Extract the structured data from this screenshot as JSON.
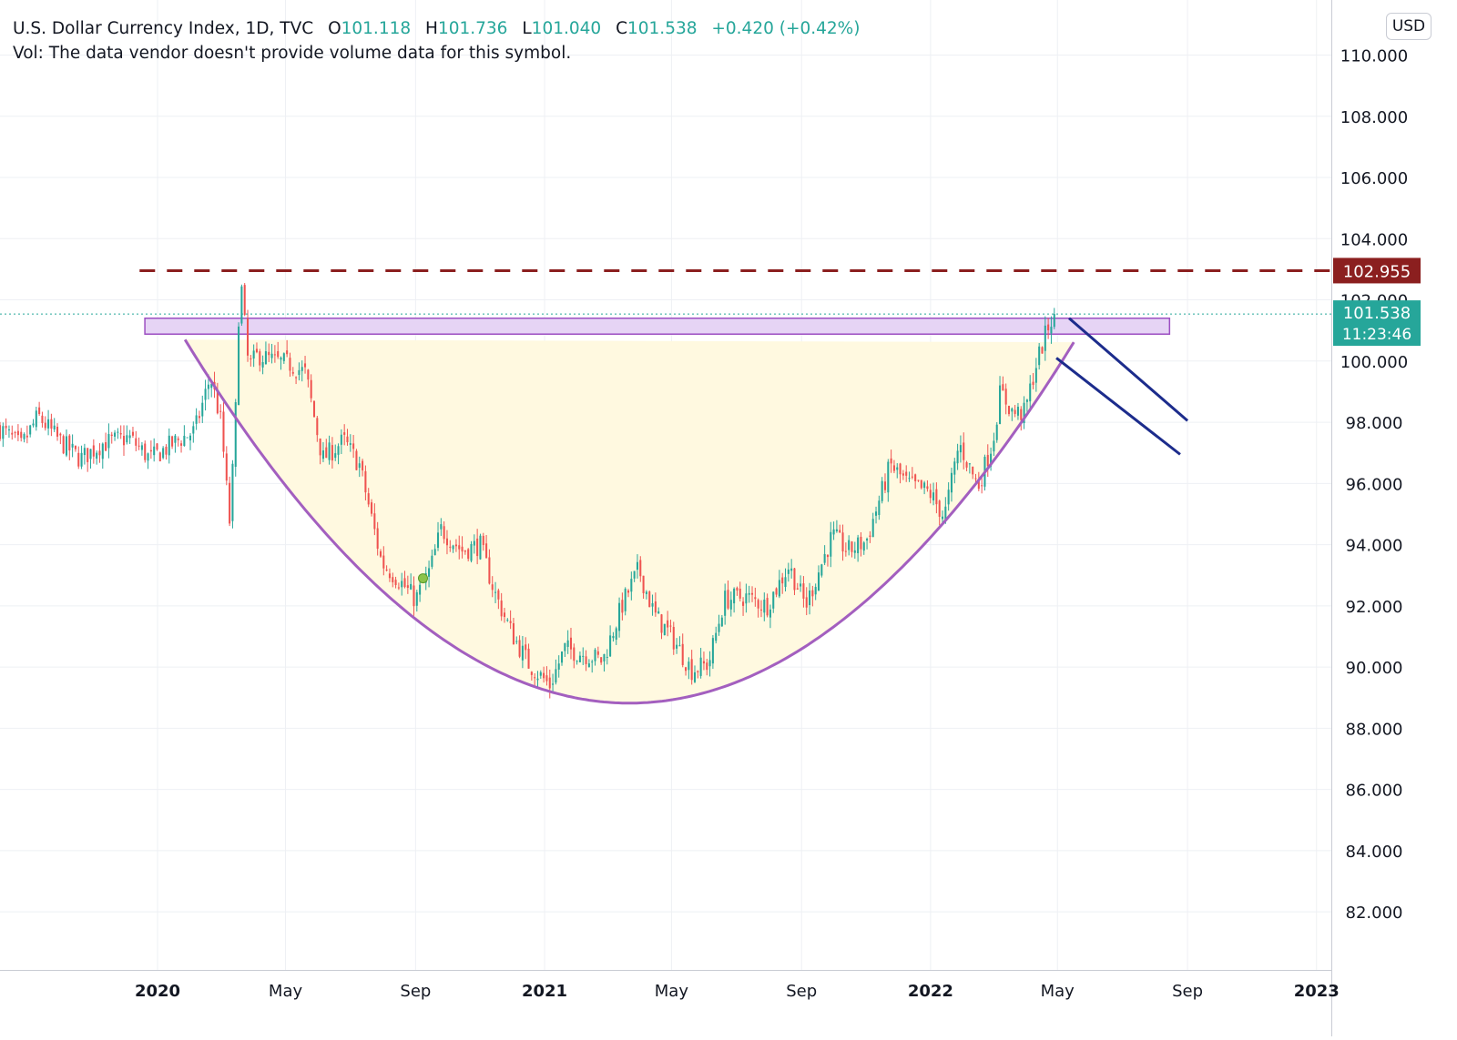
{
  "legend": {
    "symbol": "U.S. Dollar Currency Index, 1D, TVC",
    "open_label": "O",
    "open": "101.118",
    "high_label": "H",
    "high": "101.736",
    "low_label": "L",
    "low": "101.040",
    "close_label": "C",
    "close": "101.538",
    "change": "+0.420 (+0.42%)",
    "volume_note": "Vol: The data vendor doesn't provide volume data for this symbol."
  },
  "currency_button": "USD",
  "colors": {
    "up": "#26a69a",
    "down": "#ef5350",
    "cup_curve": "#a35fbf",
    "cup_fill": "#fff9e0",
    "resistance_zone_fill": "#e6d4f5",
    "resistance_zone_border": "#9c4fc2",
    "dashed_level": "#8b1f1f",
    "trend_lines": "#1c2c8c",
    "last_price_line": "#26a69a"
  },
  "chart_data": {
    "type": "candlestick",
    "symbol": "DXY",
    "timeframe": "1D",
    "y_axis_ticks": [
      "110.000",
      "108.000",
      "106.000",
      "104.000",
      "102.000",
      "100.000",
      "98.000",
      "96.000",
      "94.000",
      "92.000",
      "90.000",
      "88.000",
      "86.000",
      "84.000",
      "82.000"
    ],
    "ylim": [
      80.1,
      111.8
    ],
    "x_axis_ticks": [
      {
        "label": "2020",
        "date": "2020-01-01",
        "bold": true
      },
      {
        "label": "May",
        "date": "2020-05-01",
        "bold": false
      },
      {
        "label": "Sep",
        "date": "2020-09-01",
        "bold": false
      },
      {
        "label": "2021",
        "date": "2021-01-01",
        "bold": true
      },
      {
        "label": "May",
        "date": "2021-05-01",
        "bold": false
      },
      {
        "label": "Sep",
        "date": "2021-09-01",
        "bold": false
      },
      {
        "label": "2022",
        "date": "2022-01-01",
        "bold": true
      },
      {
        "label": "May",
        "date": "2022-05-01",
        "bold": false
      },
      {
        "label": "Sep",
        "date": "2022-09-01",
        "bold": false
      },
      {
        "label": "2023",
        "date": "2023-01-01",
        "bold": true
      }
    ],
    "xlim": [
      "2019-08-05",
      "2023-01-15"
    ],
    "price_path": [
      [
        "2019-08-05",
        97.8
      ],
      [
        "2019-08-25",
        97.2
      ],
      [
        "2019-09-10",
        98.2
      ],
      [
        "2019-09-30",
        97.4
      ],
      [
        "2019-10-20",
        96.8
      ],
      [
        "2019-11-10",
        97.3
      ],
      [
        "2019-12-05",
        97.5
      ],
      [
        "2019-12-25",
        96.8
      ],
      [
        "2020-01-20",
        97.4
      ],
      [
        "2020-02-05",
        97.7
      ],
      [
        "2020-02-20",
        99.5
      ],
      [
        "2020-03-01",
        98.0
      ],
      [
        "2020-03-09",
        94.7
      ],
      [
        "2020-03-14",
        97.5
      ],
      [
        "2020-03-19",
        102.9
      ],
      [
        "2020-03-27",
        99.8
      ],
      [
        "2020-04-05",
        100.2
      ],
      [
        "2020-04-20",
        100.0
      ],
      [
        "2020-05-05",
        99.9
      ],
      [
        "2020-05-20",
        99.6
      ],
      [
        "2020-06-05",
        96.8
      ],
      [
        "2020-06-25",
        97.4
      ],
      [
        "2020-07-10",
        96.6
      ],
      [
        "2020-07-31",
        93.4
      ],
      [
        "2020-08-15",
        92.9
      ],
      [
        "2020-09-01",
        92.2
      ],
      [
        "2020-09-15",
        93.2
      ],
      [
        "2020-09-25",
        94.5
      ],
      [
        "2020-10-15",
        93.8
      ],
      [
        "2020-11-01",
        94.0
      ],
      [
        "2020-11-15",
        92.4
      ],
      [
        "2020-12-01",
        91.1
      ],
      [
        "2020-12-17",
        90.1
      ],
      [
        "2021-01-06",
        89.4
      ],
      [
        "2021-01-20",
        90.6
      ],
      [
        "2021-02-10",
        90.4
      ],
      [
        "2021-02-25",
        90.2
      ],
      [
        "2021-03-15",
        92.0
      ],
      [
        "2021-03-31",
        93.2
      ],
      [
        "2021-04-15",
        91.7
      ],
      [
        "2021-05-01",
        91.0
      ],
      [
        "2021-05-20",
        89.9
      ],
      [
        "2021-06-05",
        90.1
      ],
      [
        "2021-06-20",
        92.2
      ],
      [
        "2021-07-10",
        92.3
      ],
      [
        "2021-07-30",
        92.0
      ],
      [
        "2021-08-20",
        93.3
      ],
      [
        "2021-09-05",
        92.0
      ],
      [
        "2021-09-30",
        94.3
      ],
      [
        "2021-10-15",
        93.8
      ],
      [
        "2021-11-01",
        94.1
      ],
      [
        "2021-11-24",
        96.6
      ],
      [
        "2021-12-10",
        96.0
      ],
      [
        "2021-12-31",
        95.7
      ],
      [
        "2022-01-14",
        94.9
      ],
      [
        "2022-01-28",
        97.3
      ],
      [
        "2022-02-15",
        95.9
      ],
      [
        "2022-03-01",
        97.4
      ],
      [
        "2022-03-08",
        99.0
      ],
      [
        "2022-03-20",
        98.3
      ],
      [
        "2022-03-31",
        98.3
      ],
      [
        "2022-04-10",
        99.8
      ],
      [
        "2022-04-22",
        101.1
      ],
      [
        "2022-04-28",
        101.538
      ]
    ],
    "candle_count": 350,
    "last_price": 101.538,
    "last_price_label": "101.538",
    "countdown": "11:23:46",
    "annotations": {
      "dashed_level": {
        "price": 102.955,
        "label": "102.955",
        "from": "2019-12-15"
      },
      "resistance_zone": {
        "from": "2019-12-20",
        "to": "2022-08-15",
        "top": 101.4,
        "bottom": 100.88
      },
      "cup_curve": {
        "start": [
          "2020-01-27",
          100.7
        ],
        "bottom": [
          "2021-03-22",
          88.82
        ],
        "end": [
          "2022-05-18",
          100.7
        ]
      },
      "trend_lines": [
        {
          "from": [
            "2022-05-12",
            101.4
          ],
          "to": [
            "2022-09-01",
            98.05
          ]
        },
        {
          "from": [
            "2022-04-30",
            100.1
          ],
          "to": [
            "2022-08-25",
            96.95
          ]
        }
      ],
      "highlight_dot": {
        "date": "2020-09-08",
        "price": 92.9
      }
    }
  }
}
